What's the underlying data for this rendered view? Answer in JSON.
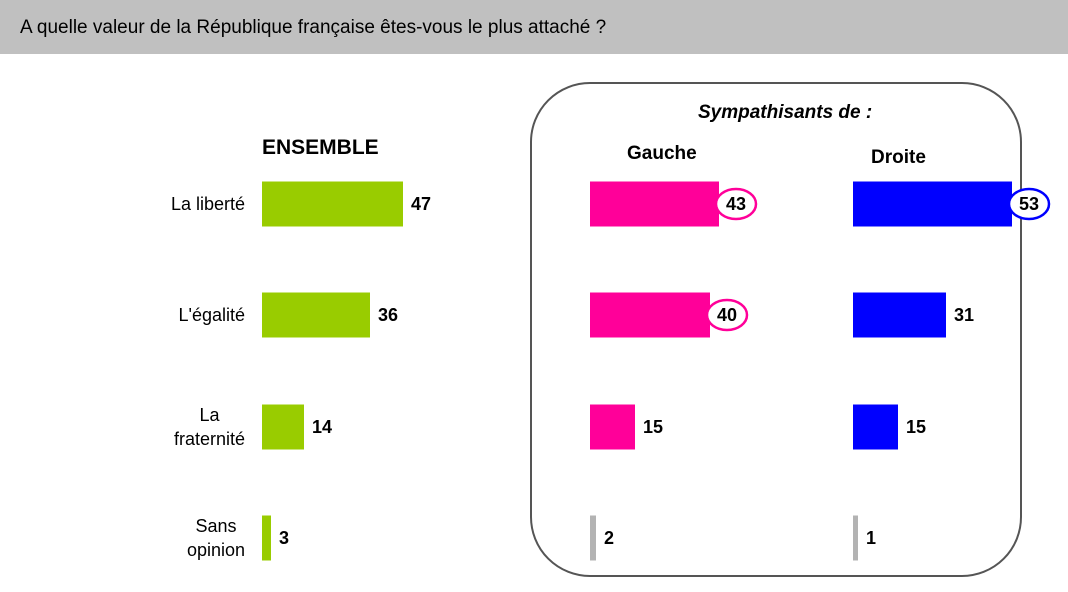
{
  "header": {
    "question": "A quelle valeur de la République française êtes-vous le plus attaché ?"
  },
  "subgroup_title": "Sympathisants de :",
  "chart_data": {
    "type": "bar",
    "orientation": "horizontal",
    "title": "A quelle valeur de la République française êtes-vous le plus attaché ?",
    "categories": [
      "La liberté",
      "L'égalité",
      "La fraternité",
      "Sans opinion"
    ],
    "category_lines": [
      [
        "La liberté"
      ],
      [
        "L'égalité"
      ],
      [
        "La",
        "fraternité"
      ],
      [
        "Sans",
        "opinion"
      ]
    ],
    "xlim": [
      0,
      100
    ],
    "grid": false,
    "legend": "none",
    "series": [
      {
        "name": "ENSEMBLE",
        "values": [
          47,
          36,
          14,
          3
        ],
        "colors": [
          "#99cc00",
          "#99cc00",
          "#99cc00",
          "#99cc00"
        ],
        "circled": [
          false,
          false,
          false,
          false
        ]
      },
      {
        "name": "Gauche",
        "values": [
          43,
          40,
          15,
          2
        ],
        "colors": [
          "#ff0099",
          "#ff0099",
          "#ff0099",
          "#b3b3b3"
        ],
        "circled": [
          true,
          true,
          false,
          false
        ]
      },
      {
        "name": "Droite",
        "values": [
          53,
          31,
          15,
          1
        ],
        "colors": [
          "#0000ff",
          "#0000ff",
          "#0000ff",
          "#b3b3b3"
        ],
        "circled": [
          true,
          false,
          false,
          false
        ]
      }
    ]
  }
}
